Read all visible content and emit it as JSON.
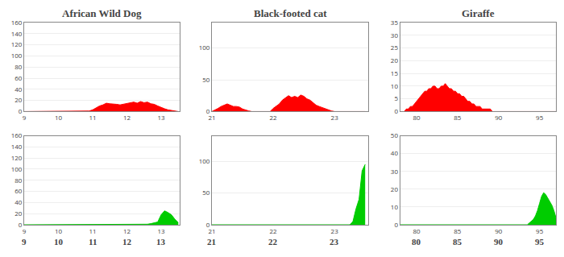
{
  "chart_data": [
    {
      "type": "area",
      "title": "African Wild Dog",
      "x": [
        9.0,
        9.1,
        9.2,
        9.3,
        9.4,
        9.5,
        9.6,
        9.7,
        9.8,
        9.9,
        10.0,
        10.1,
        10.2,
        10.3,
        10.4,
        10.5,
        10.6,
        10.7,
        10.8,
        10.9,
        11.0,
        11.1,
        11.2,
        11.3,
        11.4,
        11.5,
        11.6,
        11.7,
        11.8,
        11.9,
        12.0,
        12.1,
        12.2,
        12.3,
        12.4,
        12.5,
        12.6,
        12.7,
        12.8,
        12.9,
        13.0,
        13.1,
        13.2,
        13.3,
        13.4,
        13.5
      ],
      "values": [
        0,
        0,
        0,
        0,
        0,
        0,
        0,
        0,
        0,
        0,
        0,
        0,
        0,
        1,
        1,
        1,
        1,
        1,
        1,
        1,
        3,
        7,
        10,
        12,
        15,
        14,
        14,
        13,
        12,
        13,
        14,
        16,
        17,
        15,
        18,
        16,
        17,
        14,
        13,
        10,
        7,
        5,
        3,
        2,
        1,
        0
      ],
      "color": "#ff0000",
      "xlim": [
        9.0,
        13.55
      ],
      "xticks": [
        9,
        10,
        11,
        12,
        13
      ],
      "ylim": [
        0,
        160
      ],
      "yticks": [
        0,
        20,
        40,
        60,
        80,
        100,
        120,
        140,
        160
      ],
      "grid": true
    },
    {
      "type": "area",
      "x": [
        9.0,
        9.1,
        9.2,
        9.3,
        9.4,
        9.5,
        9.6,
        9.7,
        9.8,
        9.9,
        10.0,
        10.1,
        10.2,
        10.3,
        10.4,
        10.5,
        10.6,
        10.7,
        10.8,
        10.9,
        11.0,
        11.1,
        11.2,
        11.3,
        11.4,
        11.5,
        11.6,
        11.7,
        11.8,
        11.9,
        12.0,
        12.1,
        12.2,
        12.3,
        12.4,
        12.5,
        12.6,
        12.7,
        12.8,
        12.9,
        13.0,
        13.1,
        13.2,
        13.3,
        13.4,
        13.5
      ],
      "values": [
        0,
        0,
        0,
        0,
        0,
        0,
        0,
        0,
        0,
        0,
        0,
        0,
        0,
        0,
        0,
        0,
        0,
        0,
        0,
        0,
        0,
        0,
        0,
        0,
        0,
        0,
        0,
        0,
        0,
        0,
        0,
        0,
        0,
        0,
        0,
        1,
        1,
        2,
        3,
        5,
        18,
        25,
        22,
        18,
        10,
        4
      ],
      "color": "#00cc00",
      "xlim": [
        9.0,
        13.55
      ],
      "xticks": [
        9,
        10,
        11,
        12,
        13
      ],
      "ylim": [
        0,
        160
      ],
      "yticks": [
        0,
        20,
        40,
        60,
        80,
        100,
        120,
        140,
        160
      ],
      "grid": true,
      "annotations": [
        {
          "x": 9,
          "text": "9"
        },
        {
          "x": 10,
          "text": "10"
        },
        {
          "x": 11,
          "text": "11"
        },
        {
          "x": 12,
          "text": "12"
        },
        {
          "x": 13,
          "text": "13"
        }
      ]
    },
    {
      "type": "area",
      "title": "Black-footed cat",
      "x": [
        21.0,
        21.05,
        21.1,
        21.15,
        21.2,
        21.25,
        21.3,
        21.35,
        21.4,
        21.45,
        21.5,
        21.55,
        21.6,
        21.65,
        21.7,
        21.75,
        21.8,
        21.85,
        21.9,
        21.95,
        22.0,
        22.05,
        22.1,
        22.15,
        22.2,
        22.25,
        22.3,
        22.35,
        22.4,
        22.45,
        22.5,
        22.55,
        22.6,
        22.65,
        22.7,
        22.75,
        22.8,
        22.85,
        22.9,
        22.95,
        23.0,
        23.05,
        23.1,
        23.15,
        23.2,
        23.25,
        23.3,
        23.35,
        23.4,
        23.45,
        23.5
      ],
      "values": [
        0,
        2,
        5,
        8,
        10,
        12,
        10,
        8,
        8,
        7,
        4,
        2,
        1,
        0,
        0,
        0,
        0,
        0,
        0,
        0,
        5,
        8,
        12,
        18,
        22,
        25,
        22,
        24,
        22,
        26,
        24,
        20,
        18,
        14,
        10,
        8,
        6,
        4,
        2,
        1,
        0,
        0,
        0,
        0,
        0,
        0,
        0,
        0,
        0,
        0,
        0
      ],
      "color": "#ff0000",
      "xlim": [
        21.0,
        23.55
      ],
      "xticks": [
        21,
        22,
        23
      ],
      "ylim": [
        0,
        140
      ],
      "yticks": [
        0,
        50,
        100
      ],
      "grid": true
    },
    {
      "type": "area",
      "x": [
        21.0,
        21.05,
        21.1,
        21.15,
        21.2,
        21.25,
        21.3,
        21.35,
        21.4,
        21.45,
        21.5,
        21.55,
        21.6,
        21.65,
        21.7,
        21.75,
        21.8,
        21.85,
        21.9,
        21.95,
        22.0,
        22.05,
        22.1,
        22.15,
        22.2,
        22.25,
        22.3,
        22.35,
        22.4,
        22.45,
        22.5,
        22.55,
        22.6,
        22.65,
        22.7,
        22.75,
        22.8,
        22.85,
        22.9,
        22.95,
        23.0,
        23.05,
        23.1,
        23.15,
        23.2,
        23.25,
        23.3,
        23.35,
        23.4,
        23.45,
        23.5
      ],
      "values": [
        0,
        0,
        0,
        0,
        0,
        0,
        0,
        0,
        0,
        0,
        0,
        0,
        0,
        0,
        0,
        0,
        0,
        0,
        0,
        0,
        0,
        0,
        0,
        0,
        0,
        0,
        0,
        0,
        0,
        0,
        0,
        0,
        0,
        0,
        0,
        0,
        0,
        0,
        0,
        0,
        0,
        0,
        0,
        0,
        0,
        0,
        5,
        25,
        40,
        85,
        95
      ],
      "color": "#00cc00",
      "xlim": [
        21.0,
        23.55
      ],
      "xticks": [
        21,
        22,
        23
      ],
      "ylim": [
        0,
        140
      ],
      "yticks": [
        0,
        50,
        100
      ],
      "grid": true,
      "annotations": [
        {
          "x": 21,
          "text": "21"
        },
        {
          "x": 22,
          "text": "22"
        },
        {
          "x": 23,
          "text": "23"
        }
      ]
    },
    {
      "type": "area",
      "title": "Giraffe",
      "x": [
        78.0,
        78.25,
        78.5,
        78.75,
        79.0,
        79.25,
        79.5,
        79.75,
        80.0,
        80.25,
        80.5,
        80.75,
        81.0,
        81.25,
        81.5,
        81.75,
        82.0,
        82.25,
        82.5,
        82.75,
        83.0,
        83.25,
        83.5,
        83.75,
        84.0,
        84.25,
        84.5,
        84.75,
        85.0,
        85.25,
        85.5,
        85.75,
        86.0,
        86.25,
        86.5,
        86.75,
        87.0,
        87.25,
        87.5,
        87.75,
        88.0,
        88.25,
        88.5,
        88.75,
        89.0,
        89.25,
        89.5,
        89.75,
        90.0,
        90.25,
        90.5,
        90.75,
        91.0,
        91.25,
        91.5,
        91.75,
        92.0,
        92.25,
        92.5,
        92.75,
        93.0,
        93.25,
        93.5,
        93.75,
        94.0,
        94.25,
        94.5,
        94.75,
        95.0,
        95.25,
        95.5,
        95.75,
        96.0,
        96.25,
        96.5,
        96.75,
        97.0
      ],
      "values": [
        0,
        0,
        0,
        1,
        1,
        2,
        2,
        3,
        4,
        5,
        6,
        7,
        8,
        8,
        9,
        9,
        10,
        10,
        9,
        9,
        10,
        10,
        11,
        10,
        9,
        9,
        8,
        8,
        7,
        7,
        6,
        6,
        5,
        4,
        4,
        3,
        3,
        2,
        2,
        2,
        1,
        1,
        1,
        1,
        1,
        0,
        0,
        0,
        0,
        0,
        0,
        0,
        0,
        0,
        0,
        0,
        0,
        0,
        0,
        0,
        0,
        0,
        0,
        0,
        0,
        0,
        0,
        0,
        0,
        0,
        0,
        0,
        0,
        0,
        0,
        0,
        0
      ],
      "color": "#ff0000",
      "xlim": [
        78.0,
        97.0
      ],
      "xticks": [
        80,
        85,
        90,
        95
      ],
      "ylim": [
        0,
        35
      ],
      "yticks": [
        0,
        5,
        10,
        15,
        20,
        25,
        30,
        35
      ],
      "grid": true
    },
    {
      "type": "area",
      "x": [
        78.0,
        78.25,
        78.5,
        78.75,
        79.0,
        79.25,
        79.5,
        79.75,
        80.0,
        80.25,
        80.5,
        80.75,
        81.0,
        81.25,
        81.5,
        81.75,
        82.0,
        82.25,
        82.5,
        82.75,
        83.0,
        83.25,
        83.5,
        83.75,
        84.0,
        84.25,
        84.5,
        84.75,
        85.0,
        85.25,
        85.5,
        85.75,
        86.0,
        86.25,
        86.5,
        86.75,
        87.0,
        87.25,
        87.5,
        87.75,
        88.0,
        88.25,
        88.5,
        88.75,
        89.0,
        89.25,
        89.5,
        89.75,
        90.0,
        90.25,
        90.5,
        90.75,
        91.0,
        91.25,
        91.5,
        91.75,
        92.0,
        92.25,
        92.5,
        92.75,
        93.0,
        93.25,
        93.5,
        93.75,
        94.0,
        94.25,
        94.5,
        94.75,
        95.0,
        95.25,
        95.5,
        95.75,
        96.0,
        96.25,
        96.5,
        96.75,
        97.0
      ],
      "values": [
        0,
        0,
        0,
        0,
        0,
        0,
        0,
        0,
        0,
        0,
        0,
        0,
        0,
        0,
        0,
        0,
        0,
        0,
        0,
        0,
        0,
        0,
        0,
        0,
        0,
        0,
        0,
        0,
        0,
        0,
        0,
        0,
        0,
        0,
        0,
        0,
        0,
        0,
        0,
        0,
        0,
        0,
        0,
        0,
        0,
        0,
        0,
        0,
        0,
        0,
        0,
        0,
        0,
        0,
        0,
        0,
        0,
        0,
        0,
        0,
        0,
        0,
        0,
        1,
        2,
        3,
        5,
        8,
        12,
        16,
        18,
        17,
        15,
        13,
        11,
        8,
        4
      ],
      "color": "#00cc00",
      "xlim": [
        78.0,
        97.0
      ],
      "xticks": [
        80,
        85,
        90,
        95
      ],
      "ylim": [
        0,
        50
      ],
      "yticks": [
        0,
        10,
        20,
        30,
        40,
        50
      ],
      "grid": true,
      "annotations": [
        {
          "x": 80,
          "text": "80"
        },
        {
          "x": 85,
          "text": "85"
        },
        {
          "x": 90,
          "text": "90"
        },
        {
          "x": 95,
          "text": "95"
        }
      ]
    }
  ]
}
